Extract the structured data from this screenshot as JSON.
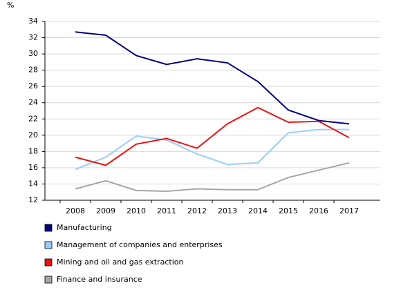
{
  "chart_data": {
    "type": "line",
    "y_label": "%",
    "categories": [
      "2008",
      "2009",
      "2010",
      "2011",
      "2012",
      "2013",
      "2014",
      "2015",
      "2016",
      "2017"
    ],
    "series": [
      {
        "name": "Manufacturing",
        "color": "#000080",
        "values": [
          32.7,
          32.3,
          29.8,
          28.7,
          29.4,
          28.9,
          26.6,
          23.1,
          21.8,
          21.4
        ]
      },
      {
        "name": "Management of companies and enterprises",
        "color": "#99ccff",
        "values": [
          15.8,
          17.3,
          19.9,
          19.4,
          17.7,
          16.4,
          16.6,
          20.3,
          20.7,
          20.7
        ]
      },
      {
        "name": "Mining and oil and gas extraction",
        "color": "#ee1111",
        "values": [
          17.3,
          16.3,
          18.9,
          19.6,
          18.4,
          21.4,
          23.4,
          21.6,
          21.7,
          19.7
        ]
      },
      {
        "name": "Finance and insurance",
        "color": "#a6a6a6",
        "values": [
          13.4,
          14.4,
          13.2,
          13.1,
          13.4,
          13.3,
          13.3,
          14.8,
          15.7,
          16.6
        ]
      }
    ],
    "ylim": [
      12,
      34
    ],
    "yticks": [
      12,
      14,
      16,
      18,
      20,
      22,
      24,
      26,
      28,
      30,
      32,
      34
    ],
    "grid": true
  }
}
